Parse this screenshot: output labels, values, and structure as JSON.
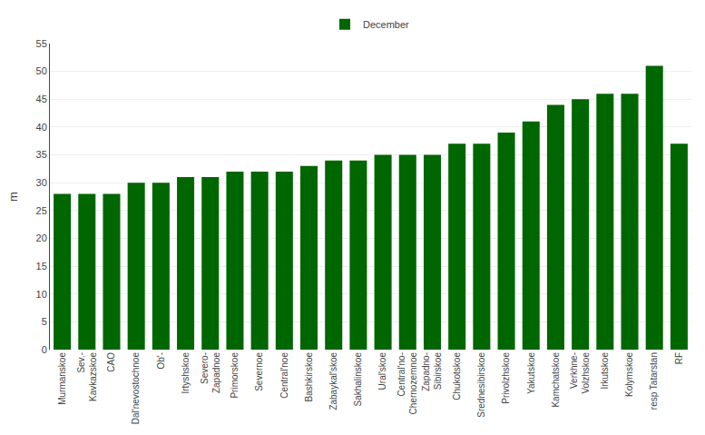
{
  "chart_data": {
    "type": "bar",
    "categories": [
      "Murmanskoe",
      "Sev.-\nKavkazskoe",
      "CAO",
      "Dal'nevostochnoe",
      "Ob'-",
      "Irtyshskoe",
      "Severo-\nZapadnoe",
      "Primorskoe",
      "Severnoe",
      "Central'noe",
      "Bashkirskoe",
      "Zabaykal'skoe",
      "Sakhalinskoe",
      "Ural'skoe",
      "Central'no-\nChernozemnoe",
      "Zapadno-\nSibirskoe",
      "Chukotskoe",
      "Srednesibirskoe",
      "Privolzhskoe",
      "Yakutskoe",
      "Kamchatskoe",
      "Verkhne-\nVolzhskoe",
      "Irkutskoe",
      "Kolymskoe",
      "resp Tatarstan",
      "RF"
    ],
    "series": [
      {
        "name": "December",
        "color": "#006600",
        "values": [
          28,
          28,
          28,
          30,
          30,
          31,
          31,
          32,
          32,
          32,
          33,
          34,
          34,
          35,
          35,
          35,
          37,
          37,
          39,
          41,
          44,
          45,
          46,
          46,
          51,
          37
        ]
      }
    ],
    "ylabel": "m",
    "ylim": [
      0,
      55
    ],
    "yticks": [
      0,
      5,
      10,
      15,
      20,
      25,
      30,
      35,
      40,
      45,
      50,
      55
    ],
    "grid": true,
    "legend": "upper center"
  }
}
